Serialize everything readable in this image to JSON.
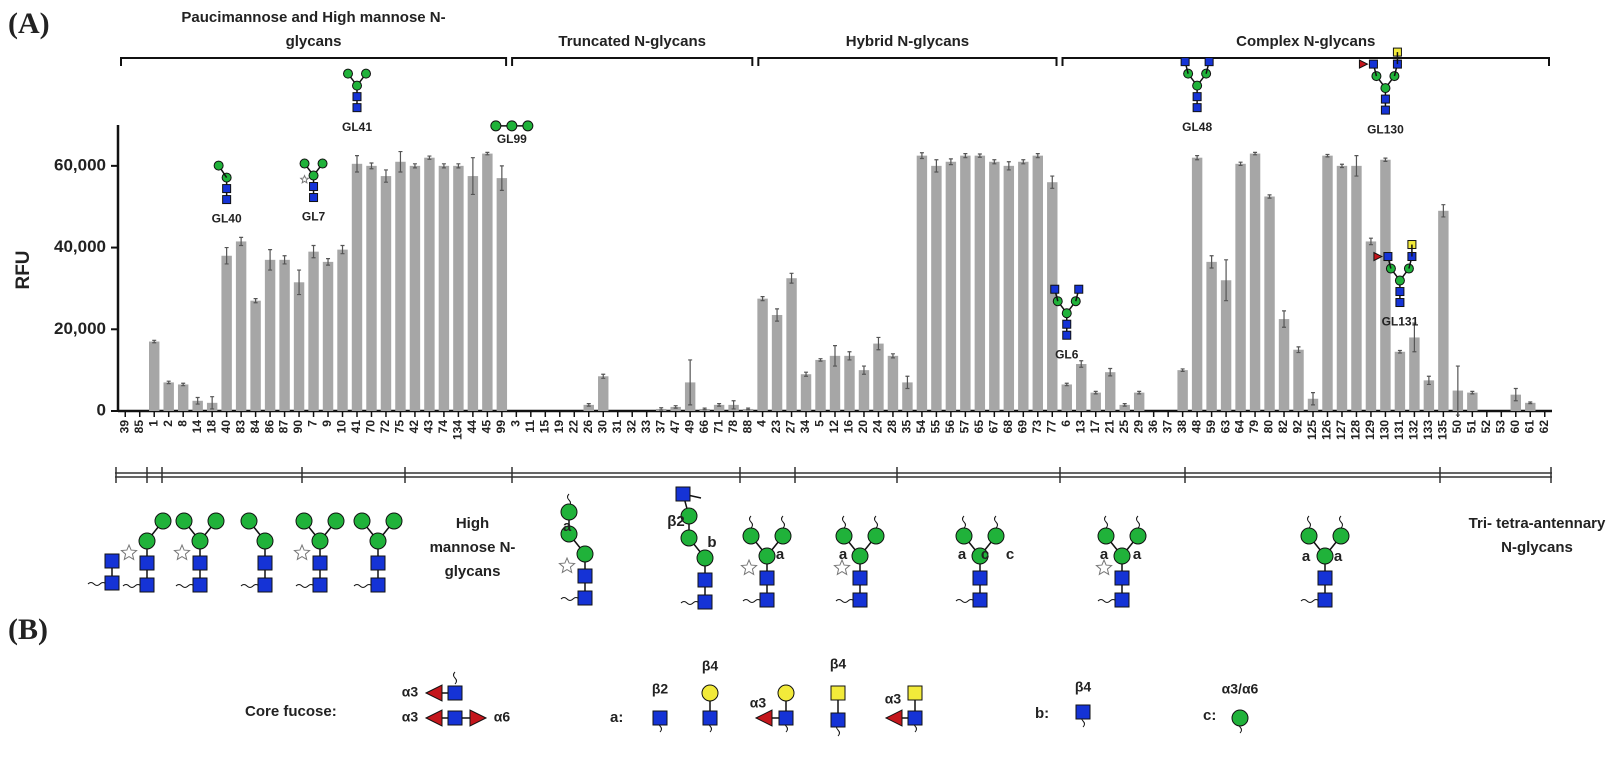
{
  "chart_data": {
    "type": "bar",
    "panel_label": "(A)",
    "y_label": "RFU",
    "color": "#a6a6a6",
    "error_color": "#555555",
    "ylim": [
      0,
      70000
    ],
    "yticks": [
      0,
      {
        "value": 20000,
        "label": "20,000"
      },
      {
        "value": 40000,
        "label": "40,000"
      },
      {
        "value": 60000,
        "label": "60,000"
      }
    ],
    "groups": [
      {
        "label": "Paucimannose and High mannose N-glycans",
        "categories": [
          "39",
          "85",
          "1",
          "2",
          "8",
          "14",
          "18",
          "40",
          "83",
          "84",
          "86",
          "87",
          "90",
          "7",
          "9",
          "10",
          "41",
          "70",
          "72",
          "75",
          "42",
          "43",
          "74",
          "134",
          "44",
          "45",
          "99"
        ],
        "values": [
          0,
          0,
          17000,
          7000,
          6500,
          2500,
          2000,
          38000,
          41500,
          27000,
          37000,
          37000,
          31500,
          39000,
          36500,
          39500,
          60500,
          60000,
          57500,
          61000,
          60000,
          62000,
          60000,
          60000,
          57500,
          63000,
          57000
        ],
        "errors": [
          0,
          0,
          300,
          300,
          300,
          800,
          1500,
          2000,
          1000,
          500,
          2500,
          1000,
          3000,
          1500,
          800,
          1000,
          2000,
          700,
          1500,
          2500,
          500,
          400,
          500,
          500,
          4500,
          300,
          3000
        ]
      },
      {
        "label": "Truncated N-glycans",
        "categories": [
          "3",
          "11",
          "15",
          "19",
          "22",
          "26",
          "30",
          "31",
          "32",
          "33",
          "37",
          "47",
          "49",
          "66",
          "71",
          "78",
          "88"
        ],
        "values": [
          0,
          0,
          0,
          0,
          0,
          1500,
          8500,
          0,
          0,
          0,
          500,
          1000,
          7000,
          500,
          1500,
          1500,
          500
        ],
        "errors": [
          0,
          0,
          0,
          0,
          0,
          300,
          500,
          0,
          0,
          0,
          300,
          300,
          5500,
          200,
          300,
          1000,
          200
        ]
      },
      {
        "label": "Hybrid N-glycans",
        "categories": [
          "4",
          "23",
          "27",
          "34",
          "5",
          "12",
          "16",
          "20",
          "24",
          "28",
          "35",
          "54",
          "55",
          "56",
          "57",
          "65",
          "67",
          "68",
          "69",
          "73",
          "77"
        ],
        "values": [
          27500,
          23500,
          32500,
          9000,
          12500,
          13500,
          13500,
          10000,
          16500,
          13500,
          7000,
          62500,
          60000,
          61000,
          62500,
          62500,
          61000,
          60000,
          61000,
          62500,
          56000
        ],
        "errors": [
          500,
          1500,
          1200,
          500,
          300,
          2500,
          1000,
          1000,
          1500,
          500,
          1500,
          700,
          1500,
          700,
          500,
          400,
          500,
          1000,
          500,
          500,
          1500
        ]
      },
      {
        "label": "Complex N-glycans",
        "categories": [
          "6",
          "13",
          "17",
          "21",
          "25",
          "29",
          "36",
          "37",
          "38",
          "48",
          "59",
          "63",
          "64",
          "79",
          "80",
          "82",
          "92",
          "125",
          "126",
          "127",
          "128",
          "129",
          "130",
          "131",
          "132",
          "133",
          "135",
          "50",
          "51",
          "52",
          "53",
          "60",
          "61",
          "62"
        ],
        "values": [
          6500,
          11500,
          4500,
          9500,
          1500,
          4500,
          0,
          0,
          10000,
          62000,
          36500,
          32000,
          60500,
          63000,
          52500,
          22500,
          15000,
          3000,
          62500,
          60000,
          60000,
          41500,
          61500,
          14500,
          18000,
          7500,
          49000,
          5000,
          4500,
          0,
          0,
          4000,
          2000,
          0
        ],
        "errors": [
          300,
          800,
          300,
          900,
          300,
          300,
          0,
          0,
          300,
          500,
          1500,
          5000,
          400,
          300,
          400,
          2000,
          700,
          1500,
          300,
          400,
          2500,
          800,
          400,
          300,
          3500,
          1000,
          1500,
          6000,
          300,
          0,
          0,
          1500,
          200,
          0
        ]
      }
    ],
    "annotations": [
      {
        "text": "GL40",
        "category": "40"
      },
      {
        "text": "GL7",
        "category": "7"
      },
      {
        "text": "GL41",
        "category": "41"
      },
      {
        "text": "GL99",
        "category": "99"
      },
      {
        "text": "GL6",
        "category": "6"
      },
      {
        "text": "GL48",
        "category": "48"
      },
      {
        "text": "GL130",
        "category": "130"
      },
      {
        "text": "GL131",
        "category": "131"
      }
    ],
    "structure_labels": {
      "high_mannose": "High mannose N-glycans",
      "tri_tetra": "Tri- tetra-antennary N-glycans"
    },
    "linkage_labels": [
      "a",
      "β2",
      "b",
      "a",
      "a",
      "a",
      "c",
      "c",
      "a",
      "a",
      "a",
      "a"
    ]
  },
  "panel_b": {
    "label": "(B)",
    "core_fucose": {
      "title": "Core fucose:",
      "linkages": [
        "α3",
        "α3",
        "α6"
      ]
    },
    "a": {
      "title": "a:",
      "linkages": [
        "β2",
        "β4",
        "α3",
        "β4",
        "α3"
      ]
    },
    "b": {
      "title": "b:",
      "linkages": [
        "β4"
      ]
    },
    "c": {
      "title": "c:",
      "linkages": [
        "α3/α6"
      ]
    }
  }
}
